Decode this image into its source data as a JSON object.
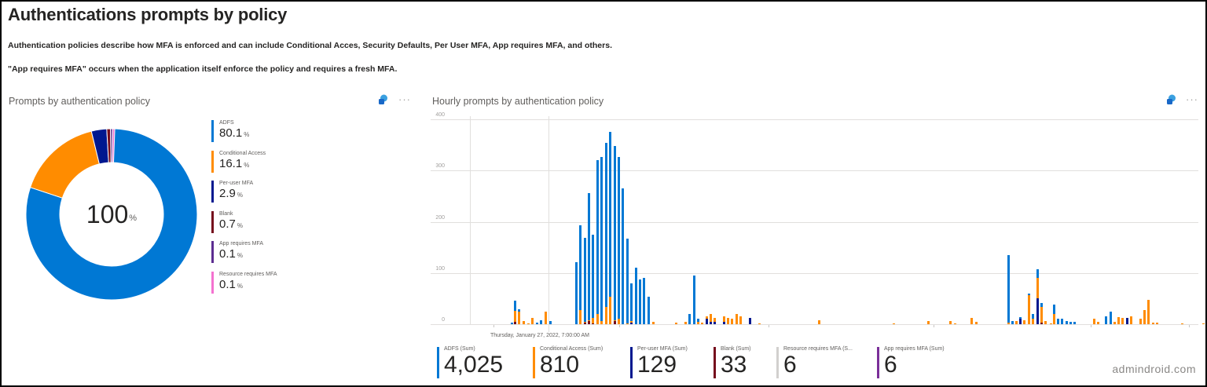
{
  "page": {
    "title": "Authentications prompts by policy",
    "descriptions": [
      "Authentication policies describe how MFA is enforced and can include Conditional Acces, Security Defaults, Per User MFA, App requires MFA, and others.",
      "\"App requires MFA\" occurs when the application itself enforce the policy and requires a fresh MFA."
    ],
    "watermark": "admindroid.com"
  },
  "colors": {
    "adfs": "#0078d4",
    "conditional_access": "#ff8c00",
    "per_user_mfa": "#00188f",
    "blank": "#750b1c",
    "app_requires_mfa": "#5c2d91",
    "resource_requires_mfa": "#e3008c",
    "resource_requires_mfa_legend": "#f472d0",
    "resource_total_bar": "#d2d0ce",
    "app_total_bar": "#7a2f99"
  },
  "donut_panel": {
    "title": "Prompts by authentication policy",
    "center_value": "100",
    "center_unit": "%",
    "more_label": "···",
    "legend": [
      {
        "label": "ADFS",
        "value": "80.1",
        "unit": "%",
        "color": "#0078d4"
      },
      {
        "label": "Conditional Access",
        "value": "16.1",
        "unit": "%",
        "color": "#ff8c00"
      },
      {
        "label": "Per-user MFA",
        "value": "2.9",
        "unit": "%",
        "color": "#00188f"
      },
      {
        "label": "Blank",
        "value": "0.7",
        "unit": "%",
        "color": "#750b1c"
      },
      {
        "label": "App requires MFA",
        "value": "0.1",
        "unit": "%",
        "color": "#5c2d91"
      },
      {
        "label": "Resource requires MFA",
        "value": "0.1",
        "unit": "%",
        "color": "#f472d0"
      }
    ]
  },
  "bar_panel": {
    "title": "Hourly prompts by authentication policy",
    "more_label": "···",
    "x_axis_label": "Thursday, January 27, 2022, 7:00:00 AM",
    "totals": [
      {
        "label": "ADFS (Sum)",
        "value": "4,025",
        "color": "#0078d4"
      },
      {
        "label": "Conditional Access (Sum)",
        "value": "810",
        "color": "#ff8c00"
      },
      {
        "label": "Per-user MFA (Sum)",
        "value": "129",
        "color": "#00188f"
      },
      {
        "label": "Blank (Sum)",
        "value": "33",
        "color": "#750b1c"
      },
      {
        "label": "Resource requires MFA (S...",
        "value": "6",
        "color": "#d2d0ce"
      },
      {
        "label": "App requires MFA (Sum)",
        "value": "6",
        "color": "#7a2f99"
      }
    ]
  },
  "chart_data": [
    {
      "type": "pie",
      "title": "Prompts by authentication policy",
      "categories": [
        "ADFS",
        "Conditional Access",
        "Per-user MFA",
        "Blank",
        "App requires MFA",
        "Resource requires MFA"
      ],
      "values": [
        80.1,
        16.1,
        2.9,
        0.7,
        0.1,
        0.1
      ],
      "center_label": "100%",
      "legend_position": "right"
    },
    {
      "type": "bar",
      "stacked": true,
      "title": "Hourly prompts by authentication policy",
      "xlabel": "Thursday, January 27, 2022, 7:00:00 AM",
      "ylabel": "",
      "ylim": [
        0,
        400
      ],
      "yticks": [
        0,
        100,
        200,
        300,
        400
      ],
      "grid": true,
      "series_order": [
        "Blank",
        "Per-user MFA",
        "Conditional Access",
        "ADFS"
      ],
      "series_colors": [
        "#750b1c",
        "#00188f",
        "#ff8c00",
        "#0078d4"
      ],
      "bars": [
        {
          "x": 52,
          "v": [
            0,
            0,
            0,
            3
          ]
        },
        {
          "x": 56,
          "v": [
            4,
            0,
            22,
            20
          ]
        },
        {
          "x": 61,
          "v": [
            0,
            0,
            24,
            5
          ]
        },
        {
          "x": 67,
          "v": [
            0,
            0,
            6,
            0
          ]
        },
        {
          "x": 73,
          "v": [
            0,
            0,
            2,
            0
          ]
        },
        {
          "x": 78,
          "v": [
            0,
            0,
            12,
            0
          ]
        },
        {
          "x": 84,
          "v": [
            0,
            0,
            0,
            3
          ]
        },
        {
          "x": 89,
          "v": [
            0,
            0,
            0,
            8
          ]
        },
        {
          "x": 95,
          "v": [
            0,
            0,
            24,
            0
          ]
        },
        {
          "x": 101,
          "v": [
            0,
            0,
            0,
            6
          ]
        },
        {
          "x": 134,
          "v": [
            0,
            0,
            0,
            121
          ]
        },
        {
          "x": 139,
          "v": [
            0,
            0,
            28,
            166
          ]
        },
        {
          "x": 145,
          "v": [
            3,
            0,
            2,
            163
          ]
        },
        {
          "x": 150,
          "v": [
            6,
            0,
            2,
            248
          ]
        },
        {
          "x": 155,
          "v": [
            2,
            0,
            10,
            163
          ]
        },
        {
          "x": 161,
          "v": [
            0,
            0,
            20,
            300
          ]
        },
        {
          "x": 166,
          "v": [
            0,
            0,
            6,
            320
          ]
        },
        {
          "x": 172,
          "v": [
            0,
            0,
            34,
            320
          ]
        },
        {
          "x": 177,
          "v": [
            0,
            0,
            54,
            322
          ]
        },
        {
          "x": 183,
          "v": [
            6,
            0,
            2,
            340
          ]
        },
        {
          "x": 188,
          "v": [
            0,
            0,
            10,
            316
          ]
        },
        {
          "x": 193,
          "v": [
            0,
            0,
            0,
            266
          ]
        },
        {
          "x": 199,
          "v": [
            0,
            0,
            2,
            165
          ]
        },
        {
          "x": 204,
          "v": [
            0,
            3,
            3,
            74
          ]
        },
        {
          "x": 210,
          "v": [
            0,
            0,
            0,
            110
          ]
        },
        {
          "x": 215,
          "v": [
            0,
            0,
            0,
            88
          ]
        },
        {
          "x": 220,
          "v": [
            0,
            0,
            0,
            90
          ]
        },
        {
          "x": 226,
          "v": [
            0,
            0,
            0,
            54
          ]
        },
        {
          "x": 232,
          "v": [
            0,
            0,
            5,
            0
          ]
        },
        {
          "x": 261,
          "v": [
            0,
            0,
            3,
            0
          ]
        },
        {
          "x": 271,
          "v": [
            0,
            0,
            0,
            0
          ]
        },
        {
          "x": 273,
          "v": [
            0,
            0,
            4,
            0
          ]
        },
        {
          "x": 278,
          "v": [
            0,
            0,
            0,
            20
          ]
        },
        {
          "x": 284,
          "v": [
            0,
            0,
            0,
            95
          ]
        },
        {
          "x": 289,
          "v": [
            0,
            0,
            4,
            7
          ]
        },
        {
          "x": 294,
          "v": [
            0,
            0,
            3,
            0
          ]
        },
        {
          "x": 300,
          "v": [
            0,
            10,
            5,
            0
          ]
        },
        {
          "x": 305,
          "v": [
            0,
            4,
            16,
            0
          ]
        },
        {
          "x": 310,
          "v": [
            0,
            4,
            8,
            0
          ]
        },
        {
          "x": 322,
          "v": [
            0,
            4,
            12,
            0
          ]
        },
        {
          "x": 327,
          "v": [
            0,
            0,
            12,
            0
          ]
        },
        {
          "x": 332,
          "v": [
            0,
            0,
            10,
            0
          ]
        },
        {
          "x": 338,
          "v": [
            0,
            0,
            20,
            0
          ]
        },
        {
          "x": 343,
          "v": [
            0,
            0,
            16,
            0
          ]
        },
        {
          "x": 355,
          "v": [
            0,
            12,
            0,
            0
          ]
        },
        {
          "x": 367,
          "v": [
            0,
            0,
            2,
            0
          ]
        },
        {
          "x": 443,
          "v": [
            0,
            0,
            8,
            0
          ]
        },
        {
          "x": 538,
          "v": [
            0,
            0,
            2,
            0
          ]
        },
        {
          "x": 582,
          "v": [
            0,
            0,
            6,
            0
          ]
        },
        {
          "x": 610,
          "v": [
            0,
            0,
            6,
            0
          ]
        },
        {
          "x": 616,
          "v": [
            0,
            0,
            2,
            0
          ]
        },
        {
          "x": 637,
          "v": [
            0,
            0,
            12,
            0
          ]
        },
        {
          "x": 643,
          "v": [
            0,
            0,
            5,
            0
          ]
        },
        {
          "x": 684,
          "v": [
            0,
            0,
            3,
            132
          ]
        },
        {
          "x": 689,
          "v": [
            0,
            0,
            0,
            6
          ]
        },
        {
          "x": 694,
          "v": [
            0,
            0,
            6,
            0
          ]
        },
        {
          "x": 699,
          "v": [
            0,
            10,
            0,
            4
          ]
        },
        {
          "x": 704,
          "v": [
            0,
            0,
            8,
            0
          ]
        },
        {
          "x": 710,
          "v": [
            0,
            0,
            56,
            4
          ]
        },
        {
          "x": 715,
          "v": [
            0,
            0,
            10,
            10
          ]
        },
        {
          "x": 721,
          "v": [
            0,
            50,
            40,
            18
          ]
        },
        {
          "x": 726,
          "v": [
            3,
            0,
            30,
            8
          ]
        },
        {
          "x": 731,
          "v": [
            0,
            0,
            6,
            0
          ]
        },
        {
          "x": 738,
          "v": [
            0,
            0,
            2,
            0
          ]
        },
        {
          "x": 742,
          "v": [
            0,
            0,
            20,
            18
          ]
        },
        {
          "x": 747,
          "v": [
            0,
            0,
            0,
            10
          ]
        },
        {
          "x": 752,
          "v": [
            0,
            0,
            0,
            10
          ]
        },
        {
          "x": 758,
          "v": [
            0,
            0,
            0,
            6
          ]
        },
        {
          "x": 763,
          "v": [
            0,
            0,
            0,
            4
          ]
        },
        {
          "x": 768,
          "v": [
            0,
            0,
            0,
            5
          ]
        },
        {
          "x": 793,
          "v": [
            0,
            0,
            10,
            0
          ]
        },
        {
          "x": 798,
          "v": [
            0,
            0,
            5,
            0
          ]
        },
        {
          "x": 808,
          "v": [
            0,
            0,
            0,
            16
          ]
        },
        {
          "x": 814,
          "v": [
            0,
            0,
            0,
            24
          ]
        },
        {
          "x": 819,
          "v": [
            0,
            0,
            5,
            0
          ]
        },
        {
          "x": 824,
          "v": [
            0,
            0,
            14,
            0
          ]
        },
        {
          "x": 829,
          "v": [
            0,
            0,
            12,
            0
          ]
        },
        {
          "x": 835,
          "v": [
            0,
            12,
            0,
            0
          ]
        },
        {
          "x": 840,
          "v": [
            0,
            0,
            16,
            0
          ]
        },
        {
          "x": 852,
          "v": [
            0,
            0,
            10,
            0
          ]
        },
        {
          "x": 857,
          "v": [
            0,
            0,
            28,
            0
          ]
        },
        {
          "x": 862,
          "v": [
            0,
            0,
            48,
            0
          ]
        },
        {
          "x": 868,
          "v": [
            0,
            0,
            3,
            0
          ]
        },
        {
          "x": 873,
          "v": [
            0,
            0,
            3,
            0
          ]
        },
        {
          "x": 905,
          "v": [
            0,
            0,
            2,
            0
          ]
        },
        {
          "x": 932,
          "v": [
            0,
            0,
            2,
            0
          ]
        },
        {
          "x": 938,
          "v": [
            0,
            0,
            20,
            0
          ]
        },
        {
          "x": 946,
          "v": [
            0,
            0,
            3,
            0
          ]
        },
        {
          "x": 951,
          "v": [
            0,
            0,
            3,
            0
          ]
        },
        {
          "x": 957,
          "v": [
            0,
            0,
            3,
            0
          ]
        },
        {
          "x": 962,
          "v": [
            0,
            0,
            12,
            0
          ]
        },
        {
          "x": 967,
          "v": [
            0,
            5,
            8,
            0
          ]
        }
      ]
    }
  ]
}
